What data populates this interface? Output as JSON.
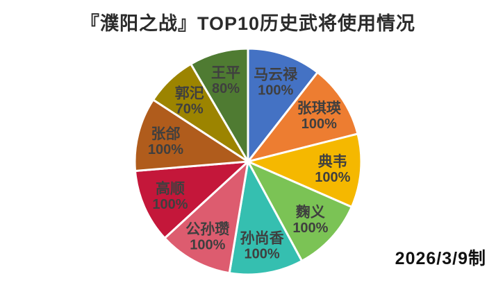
{
  "title": "『濮阳之战』TOP10历史武将使用情况",
  "footer": {
    "date_note": "2026/3/9制"
  },
  "chart_data": {
    "type": "pie",
    "title": "『濮阳之战』TOP10历史武将使用情况",
    "legend_position": "none",
    "labels_inside_slices": true,
    "start_angle": "top",
    "direction": "clockwise",
    "center": [
      357,
      233
    ],
    "radius": 163,
    "label_radius_factor": 0.75,
    "slice_separator_color": "#ffffff",
    "label_text_color": "#3f3f3f",
    "series": [
      {
        "name": "马云禄",
        "value": 100,
        "percent_label": "100%",
        "color": "#4472c4"
      },
      {
        "name": "张琪瑛",
        "value": 100,
        "percent_label": "100%",
        "color": "#ed7d31"
      },
      {
        "name": "典韦",
        "value": 100,
        "percent_label": "100%",
        "color": "#f5b800"
      },
      {
        "name": "麴义",
        "value": 100,
        "percent_label": "100%",
        "color": "#7bc355"
      },
      {
        "name": "孙尚香",
        "value": 100,
        "percent_label": "100%",
        "color": "#35bfb0"
      },
      {
        "name": "公孙瓒",
        "value": 100,
        "percent_label": "100%",
        "color": "#dd5c6f"
      },
      {
        "name": "高顺",
        "value": 100,
        "percent_label": "100%",
        "color": "#c4173a"
      },
      {
        "name": "张郃",
        "value": 100,
        "percent_label": "100%",
        "color": "#b05c1c"
      },
      {
        "name": "郭汜",
        "value": 70,
        "percent_label": "70%",
        "color": "#9c8400"
      },
      {
        "name": "王平",
        "value": 80,
        "percent_label": "80%",
        "color": "#4f7b32"
      }
    ]
  }
}
